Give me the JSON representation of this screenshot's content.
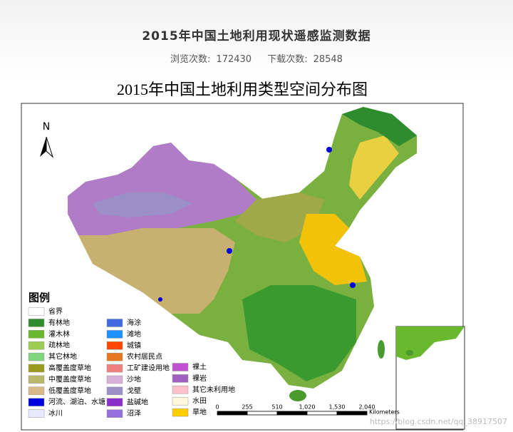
{
  "page": {
    "title": "2015年中国土地利用现状遥感监测数据",
    "stats": [
      {
        "label": "浏览次数:",
        "value": "172430"
      },
      {
        "label": "下载次数:",
        "value": "28548"
      }
    ]
  },
  "map": {
    "title": "2015年中国土地利用类型空间分布图",
    "north": "N",
    "legend": {
      "title": "图例",
      "columns": [
        [
          {
            "label": "省界",
            "color": "#ffffff"
          },
          {
            "label": "有林地",
            "color": "#2e8b2e"
          },
          {
            "label": "灌木林",
            "color": "#6ab82e"
          },
          {
            "label": "疏林地",
            "color": "#9ccc52"
          },
          {
            "label": "其它林地",
            "color": "#7fd67f"
          },
          {
            "label": "高覆盖度草地",
            "color": "#9a9a1e"
          },
          {
            "label": "中覆盖度草地",
            "color": "#b8b86a"
          },
          {
            "label": "低覆盖度草地",
            "color": "#d9b88a"
          },
          {
            "label": "河流、湖泊、水塘",
            "color": "#0000dd"
          },
          {
            "label": "冰川",
            "color": "#e8e8ff"
          }
        ],
        [
          {
            "label": "海涂",
            "color": "#4169e1"
          },
          {
            "label": "滩地",
            "color": "#1e90ff"
          },
          {
            "label": "城镇",
            "color": "#ff4500"
          },
          {
            "label": "农村居民点",
            "color": "#e87722"
          },
          {
            "label": "工矿建设用地",
            "color": "#f08080"
          },
          {
            "label": "沙地",
            "color": "#d8b0d8"
          },
          {
            "label": "戈壁",
            "color": "#9b8fc8"
          },
          {
            "label": "盐碱地",
            "color": "#8b2fc9"
          },
          {
            "label": "沼泽",
            "color": "#9370db"
          }
        ],
        [
          {
            "label": "裸土",
            "color": "#c050d0"
          },
          {
            "label": "裸岩",
            "color": "#a060c0"
          },
          {
            "label": "其它未利用地",
            "color": "#ffc0cb"
          },
          {
            "label": "水田",
            "color": "#fff8dc"
          },
          {
            "label": "旱地",
            "color": "#ffcc00"
          }
        ]
      ]
    },
    "scale": {
      "labels": [
        "0",
        "255",
        "510",
        "1,020",
        "1,530",
        "2,040"
      ],
      "unit": "Kilometers"
    }
  },
  "watermark": "https://blog.csdn.net/qq_38917507"
}
